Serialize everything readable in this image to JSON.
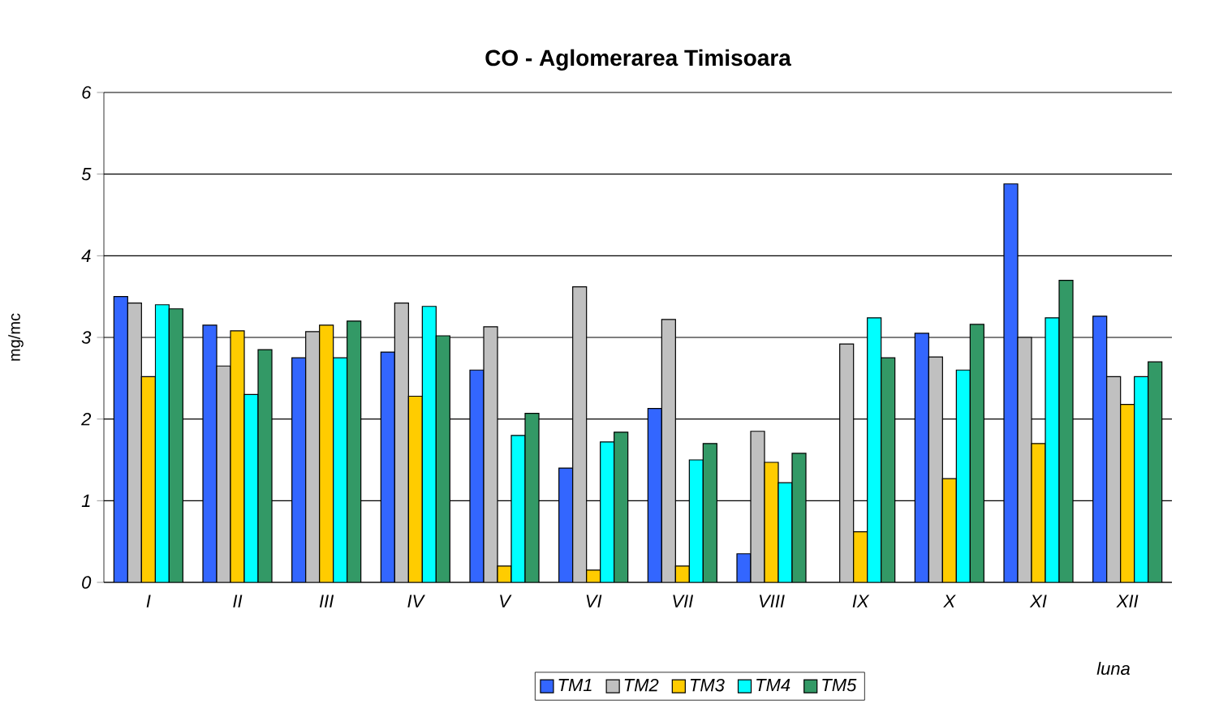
{
  "chart_data": {
    "type": "bar",
    "title": "CO - Aglomerarea Timisoara",
    "xlabel": "luna",
    "ylabel": "mg/mc",
    "categories": [
      "I",
      "II",
      "III",
      "IV",
      "V",
      "VI",
      "VII",
      "VIII",
      "IX",
      "X",
      "XI",
      "XII"
    ],
    "series": [
      {
        "name": "TM1",
        "color": "#3366ff",
        "values": [
          3.5,
          3.15,
          2.75,
          2.82,
          2.6,
          1.4,
          2.13,
          0.35,
          null,
          3.05,
          4.88,
          3.26
        ]
      },
      {
        "name": "TM2",
        "color": "#c0c0c0",
        "values": [
          3.42,
          2.65,
          3.07,
          3.42,
          3.13,
          3.62,
          3.22,
          1.85,
          2.92,
          2.76,
          3.0,
          2.52
        ]
      },
      {
        "name": "TM3",
        "color": "#ffcc00",
        "values": [
          2.52,
          3.08,
          3.15,
          2.28,
          0.2,
          0.15,
          0.2,
          1.47,
          0.62,
          1.27,
          1.7,
          2.18
        ]
      },
      {
        "name": "TM4",
        "color": "#00ffff",
        "values": [
          3.4,
          2.3,
          2.75,
          3.38,
          1.8,
          1.72,
          1.5,
          1.22,
          3.24,
          2.6,
          3.24,
          2.52
        ]
      },
      {
        "name": "TM5",
        "color": "#339966",
        "values": [
          3.35,
          2.85,
          3.2,
          3.02,
          2.07,
          1.84,
          1.7,
          1.58,
          2.75,
          3.16,
          3.7,
          2.7
        ]
      }
    ],
    "ylim": [
      0,
      6
    ],
    "yticks": [
      0,
      1,
      2,
      3,
      4,
      5,
      6
    ],
    "grid": "y",
    "legend": "bottom"
  }
}
